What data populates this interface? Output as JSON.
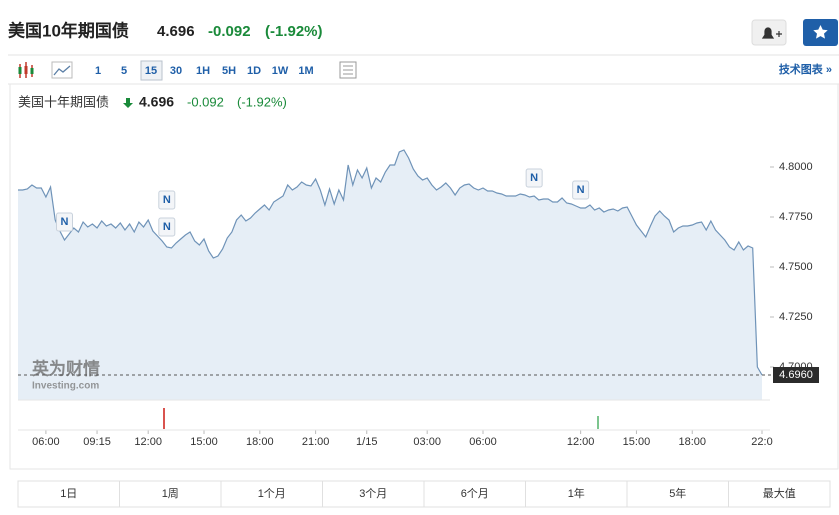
{
  "header": {
    "title": "美国10年期国债",
    "price": "4.696",
    "change": "-0.092",
    "change_pct": "(-1.92%)"
  },
  "toolbar": {
    "intervals": [
      "1",
      "5",
      "15",
      "30",
      "1H",
      "5H",
      "1D",
      "1W",
      "1M"
    ],
    "selected": "15",
    "tech_link": "技术图表 »"
  },
  "chart_data": {
    "type": "area",
    "legend": {
      "name": "美国十年期国债",
      "price": "4.696",
      "change": "-0.092",
      "change_pct": "(-1.92%)"
    },
    "series": [
      {
        "color": "#6f93b8",
        "x": [
          0,
          1,
          2,
          3,
          4,
          5,
          6,
          7,
          8,
          9,
          10,
          11,
          12,
          13,
          14,
          15,
          16,
          17,
          18,
          19,
          20,
          21,
          22,
          23,
          24,
          25,
          26,
          27,
          28,
          29,
          30,
          31,
          32,
          33,
          34,
          35,
          36,
          37,
          38,
          39,
          40,
          41,
          42,
          43,
          44,
          45,
          46,
          47,
          48,
          49,
          50,
          51,
          52,
          53,
          54,
          55,
          56,
          57,
          58,
          59,
          60,
          61,
          62,
          63,
          64,
          65,
          66,
          67,
          68,
          69,
          70,
          71,
          72,
          73,
          74,
          75,
          76,
          77,
          78,
          79,
          80,
          81,
          82,
          83,
          84,
          85,
          86,
          87,
          88,
          89,
          90,
          91,
          92,
          93,
          94,
          95,
          96,
          97,
          98,
          99,
          100,
          101,
          102,
          103,
          104,
          105,
          106,
          107,
          108,
          109,
          110,
          111,
          112,
          113,
          114,
          115,
          116,
          117,
          118,
          119,
          120,
          121,
          122,
          123,
          124,
          125,
          126,
          127,
          128,
          129,
          130,
          131,
          132,
          133,
          134,
          135,
          136,
          137,
          138,
          139,
          140,
          141,
          142,
          143,
          144,
          145,
          146,
          147,
          148,
          149,
          150,
          151,
          152,
          153,
          154,
          155,
          156,
          157,
          158,
          159,
          160
        ],
        "values": [
          4.7885,
          4.7885,
          4.789,
          4.791,
          4.7895,
          4.7895,
          4.785,
          4.79,
          4.7735,
          4.768,
          4.7635,
          4.7665,
          4.7695,
          4.7675,
          4.7725,
          4.77,
          4.7715,
          4.7695,
          4.773,
          4.7705,
          4.7715,
          4.7695,
          4.772,
          4.7685,
          4.7715,
          4.7675,
          4.7725,
          4.77,
          4.7735,
          4.768,
          4.7655,
          4.763,
          4.76,
          4.7595,
          4.762,
          4.764,
          4.766,
          4.7675,
          4.763,
          4.761,
          4.764,
          4.758,
          4.7545,
          4.7555,
          4.759,
          4.7645,
          4.7675,
          4.7735,
          4.776,
          4.773,
          4.7745,
          4.777,
          4.779,
          4.781,
          4.7785,
          4.7825,
          4.784,
          4.7855,
          4.791,
          4.7885,
          4.79,
          4.7925,
          4.791,
          4.7905,
          4.794,
          4.7885,
          4.781,
          4.789,
          4.7815,
          4.7885,
          4.7835,
          4.801,
          4.791,
          4.7985,
          4.7945,
          4.7995,
          4.7895,
          4.7945,
          4.7925,
          4.7975,
          4.801,
          4.801,
          4.8075,
          4.8085,
          4.8045,
          4.799,
          4.7955,
          4.7935,
          4.7945,
          4.791,
          4.7885,
          4.79,
          4.792,
          4.7895,
          4.786,
          4.7895,
          4.791,
          4.7915,
          4.7895,
          4.7885,
          4.7895,
          4.788,
          4.788,
          4.787,
          4.7865,
          4.7855,
          4.7855,
          4.7855,
          4.7865,
          4.786,
          4.785,
          4.7855,
          4.7835,
          4.784,
          4.784,
          4.7825,
          4.7825,
          4.7845,
          4.782,
          4.7815,
          4.7805,
          4.7795,
          4.7795,
          4.781,
          4.7785,
          4.7795,
          4.7775,
          4.7785,
          4.779,
          4.778,
          4.7795,
          4.78,
          4.7755,
          4.771,
          4.768,
          4.765,
          4.7705,
          4.7755,
          4.778,
          4.7755,
          4.7735,
          4.7675,
          4.7695,
          4.7705,
          4.7705,
          4.771,
          4.772,
          4.7725,
          4.7685,
          4.773,
          4.7685,
          4.766,
          4.7635,
          4.76,
          4.7585,
          4.7625,
          4.7585,
          4.7605,
          4.7595,
          4.7,
          4.696
        ]
      }
    ],
    "xlim": [
      0,
      160
    ],
    "ylim": [
      4.6835,
      4.821
    ],
    "yticks": [
      {
        "value": 4.8,
        "label": "4.8000"
      },
      {
        "value": 4.775,
        "label": "4.7750"
      },
      {
        "value": 4.75,
        "label": "4.7500"
      },
      {
        "value": 4.725,
        "label": "4.7250"
      },
      {
        "value": 4.7,
        "label": "4.7000"
      }
    ],
    "xticks": [
      {
        "value": 6,
        "label": "06:00"
      },
      {
        "value": 17,
        "label": "09:15"
      },
      {
        "value": 28,
        "label": "12:00"
      },
      {
        "value": 40,
        "label": "15:00"
      },
      {
        "value": 52,
        "label": "18:00"
      },
      {
        "value": 64,
        "label": "21:00"
      },
      {
        "value": 75,
        "label": "1/15"
      },
      {
        "value": 88,
        "label": "03:00"
      },
      {
        "value": 100,
        "label": "06:00"
      },
      {
        "value": 121,
        "label": "12:00"
      },
      {
        "value": 133,
        "label": "15:00"
      },
      {
        "value": 145,
        "label": "18:00"
      },
      {
        "value": 160,
        "label": "22:0"
      }
    ],
    "price_line": {
      "value": 4.696,
      "label": "4.6960"
    },
    "news_markers": [
      {
        "x": 10,
        "y": 4.7725,
        "label": "N"
      },
      {
        "x": 32,
        "y": 4.7835,
        "label": "N"
      },
      {
        "x": 32,
        "y": 4.77,
        "label": "N"
      },
      {
        "x": 111,
        "y": 4.7945,
        "label": "N"
      },
      {
        "x": 121,
        "y": 4.7885,
        "label": "N"
      }
    ],
    "watermark": {
      "brand": "英为财情",
      "site": "Investing.com"
    }
  },
  "ranges": [
    "1日",
    "1周",
    "1个月",
    "3个月",
    "6个月",
    "1年",
    "5年",
    "最大值"
  ]
}
